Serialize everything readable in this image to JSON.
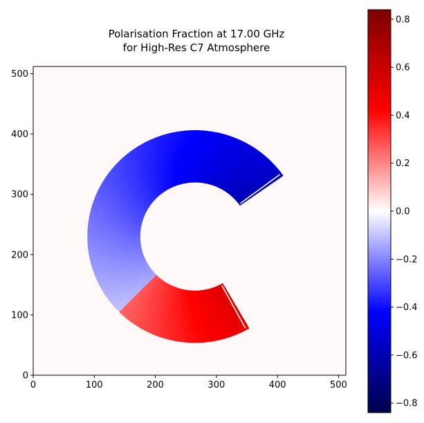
{
  "chart_data": {
    "type": "heatmap",
    "title": "Polarisation Fraction at 17.00 GHz",
    "subtitle": "for High-Res C7 Atmosphere",
    "xlabel": "",
    "ylabel": "",
    "xlim": [
      0,
      512
    ],
    "ylim": [
      0,
      512
    ],
    "x_ticks": [
      0,
      100,
      200,
      300,
      400,
      500
    ],
    "y_ticks": [
      0,
      100,
      200,
      300,
      400,
      500
    ],
    "grid": false,
    "colormap": "seismic",
    "colorbar": {
      "range": [
        -0.84,
        0.84
      ],
      "ticks": [
        -0.8,
        -0.6,
        -0.4,
        -0.2,
        0.0,
        0.2,
        0.4,
        0.6,
        0.8
      ],
      "tick_labels": [
        "−0.8",
        "−0.6",
        "−0.4",
        "−0.2",
        "0.0",
        "0.2",
        "0.4",
        "0.6",
        "0.8"
      ]
    },
    "background_value": 0.0,
    "crescent": {
      "center": [
        265,
        230
      ],
      "outer_radius": 175,
      "inner_radius": 90,
      "arc_start_deg": 35,
      "arc_end_deg": 300,
      "split_angle_deg": 225,
      "value_at_upper_tip": -0.55,
      "value_at_split_upper": -0.1,
      "value_at_split_lower": 0.25,
      "value_at_lower_tip": 0.5
    }
  },
  "colors": {
    "axes_background": "#fff8f8",
    "frame": "#000000",
    "cmap_stops": [
      "#00004c",
      "#0000ff",
      "#ffffff",
      "#ff0000",
      "#800000"
    ]
  }
}
